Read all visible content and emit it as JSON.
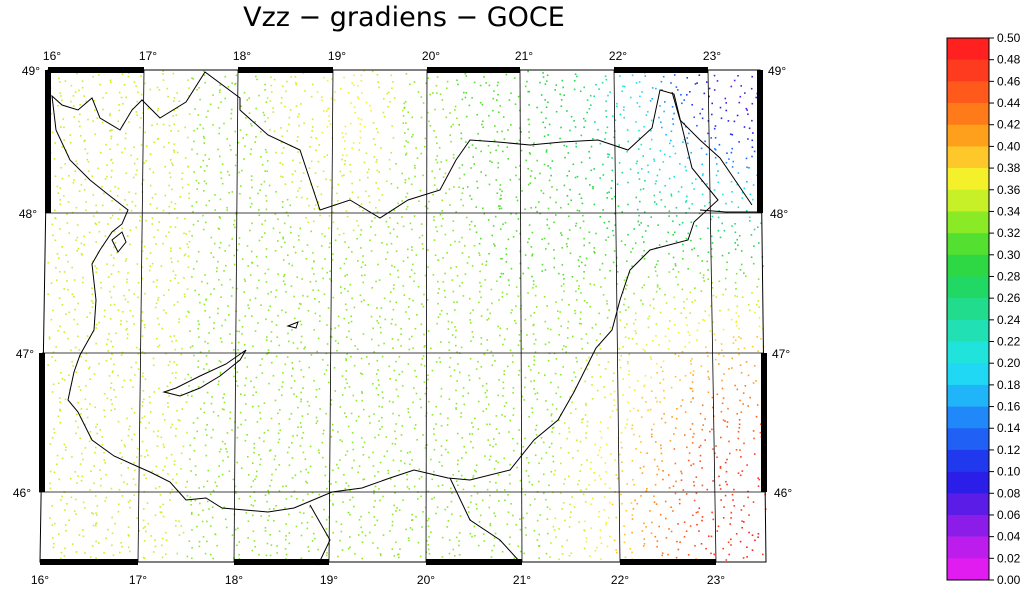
{
  "title": "Vzz − gradiens − GOCE",
  "map": {
    "lon_ticks": [
      "16°",
      "17°",
      "18°",
      "19°",
      "20°",
      "21°",
      "22°",
      "23°"
    ],
    "lat_ticks": [
      "49°",
      "48°",
      "47°",
      "46°"
    ],
    "lon_range": [
      16.0,
      23.5
    ],
    "lat_range": [
      45.5,
      49.05
    ]
  },
  "colorbar": {
    "labels": [
      "0.50",
      "0.48",
      "0.46",
      "0.44",
      "0.42",
      "0.40",
      "0.38",
      "0.36",
      "0.34",
      "0.32",
      "0.30",
      "0.28",
      "0.26",
      "0.24",
      "0.22",
      "0.20",
      "0.18",
      "0.16",
      "0.14",
      "0.12",
      "0.10",
      "0.08",
      "0.06",
      "0.04",
      "0.02",
      "0.00"
    ],
    "colors": [
      "#ff2020",
      "#ff3b1f",
      "#ff5a1c",
      "#ff7a18",
      "#ffa01c",
      "#ffc82a",
      "#f4f02a",
      "#c8f028",
      "#8aea26",
      "#54e030",
      "#2ed844",
      "#22d864",
      "#20dc8c",
      "#20e0b4",
      "#20e4dc",
      "#20d8f4",
      "#20b4f8",
      "#2088f8",
      "#2060f4",
      "#2038ee",
      "#2a1ee8",
      "#5a1ce6",
      "#8c1ce8",
      "#bc1cec",
      "#e01cf0"
    ]
  },
  "chart_data": {
    "type": "scatter",
    "title": "Vzz − gradiens − GOCE",
    "xlabel": "",
    "ylabel": "",
    "x_range_deg": [
      16.0,
      23.5
    ],
    "y_range_deg": [
      45.5,
      49.05
    ],
    "colorbar_range": [
      0.0,
      0.5
    ],
    "value_regions": [
      {
        "region": "west (16°–17°)",
        "approx_value": 0.36
      },
      {
        "region": "central (17°–21°)",
        "approx_value": 0.31
      },
      {
        "region": "northeast (22.5°–23.5°E, 48°–49°N)",
        "approx_value": 0.14
      },
      {
        "region": "southeast (22°–23.5°E, 45.5°–47°N)",
        "approx_value": 0.47
      }
    ]
  }
}
